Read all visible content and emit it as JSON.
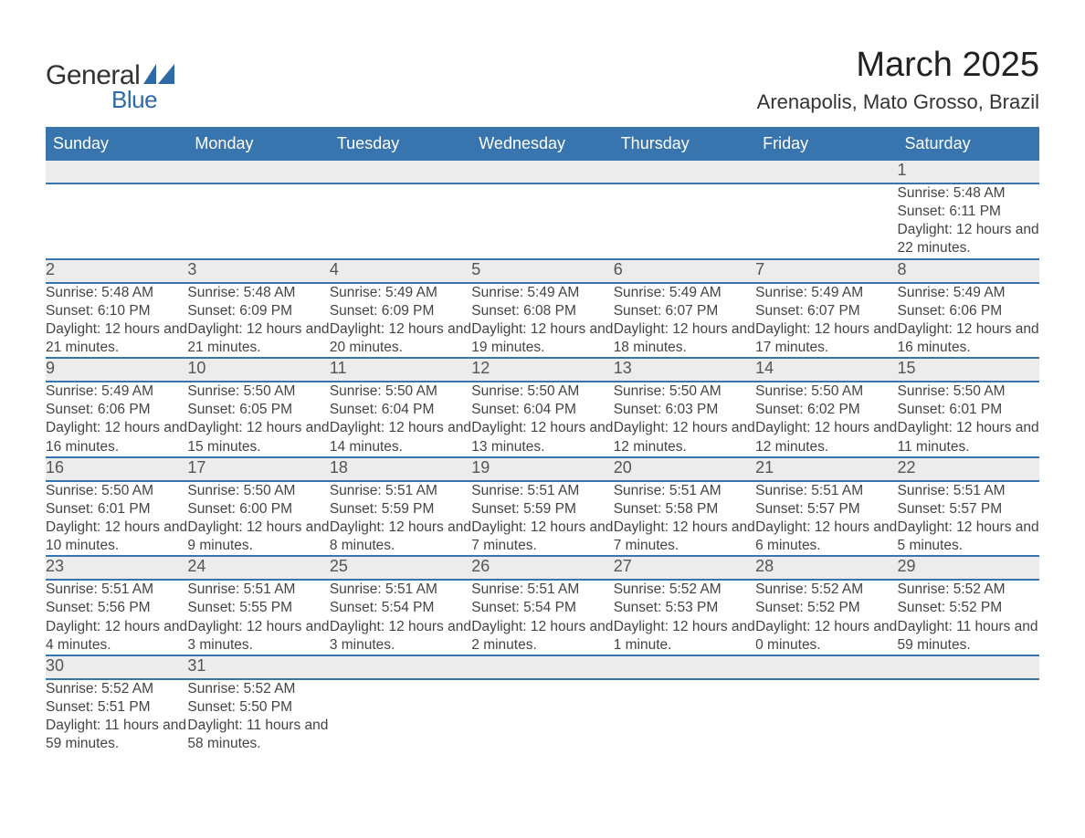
{
  "brand": {
    "name1": "General",
    "name2": "Blue",
    "shape_color": "#2f6aa8"
  },
  "title": "March 2025",
  "location": "Arenapolis, Mato Grosso, Brazil",
  "style": {
    "header_bg": "#3874ad",
    "header_fg": "#ffffff",
    "daynum_bg": "#ececec",
    "daynum_fg": "#555555",
    "body_fg": "#444444",
    "row_divider": "#3874ad",
    "page_bg": "#ffffff",
    "title_fontsize": 38,
    "location_fontsize": 22,
    "header_fontsize": 18,
    "daynum_fontsize": 18,
    "details_fontsize": 15.5,
    "columns": 7,
    "week_rows": 6
  },
  "day_headers": [
    "Sunday",
    "Monday",
    "Tuesday",
    "Wednesday",
    "Thursday",
    "Friday",
    "Saturday"
  ],
  "weeks": [
    [
      null,
      null,
      null,
      null,
      null,
      null,
      {
        "n": "1",
        "sunrise": "5:48 AM",
        "sunset": "6:11 PM",
        "daylight": "12 hours and 22 minutes."
      }
    ],
    [
      {
        "n": "2",
        "sunrise": "5:48 AM",
        "sunset": "6:10 PM",
        "daylight": "12 hours and 21 minutes."
      },
      {
        "n": "3",
        "sunrise": "5:48 AM",
        "sunset": "6:09 PM",
        "daylight": "12 hours and 21 minutes."
      },
      {
        "n": "4",
        "sunrise": "5:49 AM",
        "sunset": "6:09 PM",
        "daylight": "12 hours and 20 minutes."
      },
      {
        "n": "5",
        "sunrise": "5:49 AM",
        "sunset": "6:08 PM",
        "daylight": "12 hours and 19 minutes."
      },
      {
        "n": "6",
        "sunrise": "5:49 AM",
        "sunset": "6:07 PM",
        "daylight": "12 hours and 18 minutes."
      },
      {
        "n": "7",
        "sunrise": "5:49 AM",
        "sunset": "6:07 PM",
        "daylight": "12 hours and 17 minutes."
      },
      {
        "n": "8",
        "sunrise": "5:49 AM",
        "sunset": "6:06 PM",
        "daylight": "12 hours and 16 minutes."
      }
    ],
    [
      {
        "n": "9",
        "sunrise": "5:49 AM",
        "sunset": "6:06 PM",
        "daylight": "12 hours and 16 minutes."
      },
      {
        "n": "10",
        "sunrise": "5:50 AM",
        "sunset": "6:05 PM",
        "daylight": "12 hours and 15 minutes."
      },
      {
        "n": "11",
        "sunrise": "5:50 AM",
        "sunset": "6:04 PM",
        "daylight": "12 hours and 14 minutes."
      },
      {
        "n": "12",
        "sunrise": "5:50 AM",
        "sunset": "6:04 PM",
        "daylight": "12 hours and 13 minutes."
      },
      {
        "n": "13",
        "sunrise": "5:50 AM",
        "sunset": "6:03 PM",
        "daylight": "12 hours and 12 minutes."
      },
      {
        "n": "14",
        "sunrise": "5:50 AM",
        "sunset": "6:02 PM",
        "daylight": "12 hours and 12 minutes."
      },
      {
        "n": "15",
        "sunrise": "5:50 AM",
        "sunset": "6:01 PM",
        "daylight": "12 hours and 11 minutes."
      }
    ],
    [
      {
        "n": "16",
        "sunrise": "5:50 AM",
        "sunset": "6:01 PM",
        "daylight": "12 hours and 10 minutes."
      },
      {
        "n": "17",
        "sunrise": "5:50 AM",
        "sunset": "6:00 PM",
        "daylight": "12 hours and 9 minutes."
      },
      {
        "n": "18",
        "sunrise": "5:51 AM",
        "sunset": "5:59 PM",
        "daylight": "12 hours and 8 minutes."
      },
      {
        "n": "19",
        "sunrise": "5:51 AM",
        "sunset": "5:59 PM",
        "daylight": "12 hours and 7 minutes."
      },
      {
        "n": "20",
        "sunrise": "5:51 AM",
        "sunset": "5:58 PM",
        "daylight": "12 hours and 7 minutes."
      },
      {
        "n": "21",
        "sunrise": "5:51 AM",
        "sunset": "5:57 PM",
        "daylight": "12 hours and 6 minutes."
      },
      {
        "n": "22",
        "sunrise": "5:51 AM",
        "sunset": "5:57 PM",
        "daylight": "12 hours and 5 minutes."
      }
    ],
    [
      {
        "n": "23",
        "sunrise": "5:51 AM",
        "sunset": "5:56 PM",
        "daylight": "12 hours and 4 minutes."
      },
      {
        "n": "24",
        "sunrise": "5:51 AM",
        "sunset": "5:55 PM",
        "daylight": "12 hours and 3 minutes."
      },
      {
        "n": "25",
        "sunrise": "5:51 AM",
        "sunset": "5:54 PM",
        "daylight": "12 hours and 3 minutes."
      },
      {
        "n": "26",
        "sunrise": "5:51 AM",
        "sunset": "5:54 PM",
        "daylight": "12 hours and 2 minutes."
      },
      {
        "n": "27",
        "sunrise": "5:52 AM",
        "sunset": "5:53 PM",
        "daylight": "12 hours and 1 minute."
      },
      {
        "n": "28",
        "sunrise": "5:52 AM",
        "sunset": "5:52 PM",
        "daylight": "12 hours and 0 minutes."
      },
      {
        "n": "29",
        "sunrise": "5:52 AM",
        "sunset": "5:52 PM",
        "daylight": "11 hours and 59 minutes."
      }
    ],
    [
      {
        "n": "30",
        "sunrise": "5:52 AM",
        "sunset": "5:51 PM",
        "daylight": "11 hours and 59 minutes."
      },
      {
        "n": "31",
        "sunrise": "5:52 AM",
        "sunset": "5:50 PM",
        "daylight": "11 hours and 58 minutes."
      },
      null,
      null,
      null,
      null,
      null
    ]
  ],
  "labels": {
    "sunrise": "Sunrise: ",
    "sunset": "Sunset: ",
    "daylight": "Daylight: "
  }
}
